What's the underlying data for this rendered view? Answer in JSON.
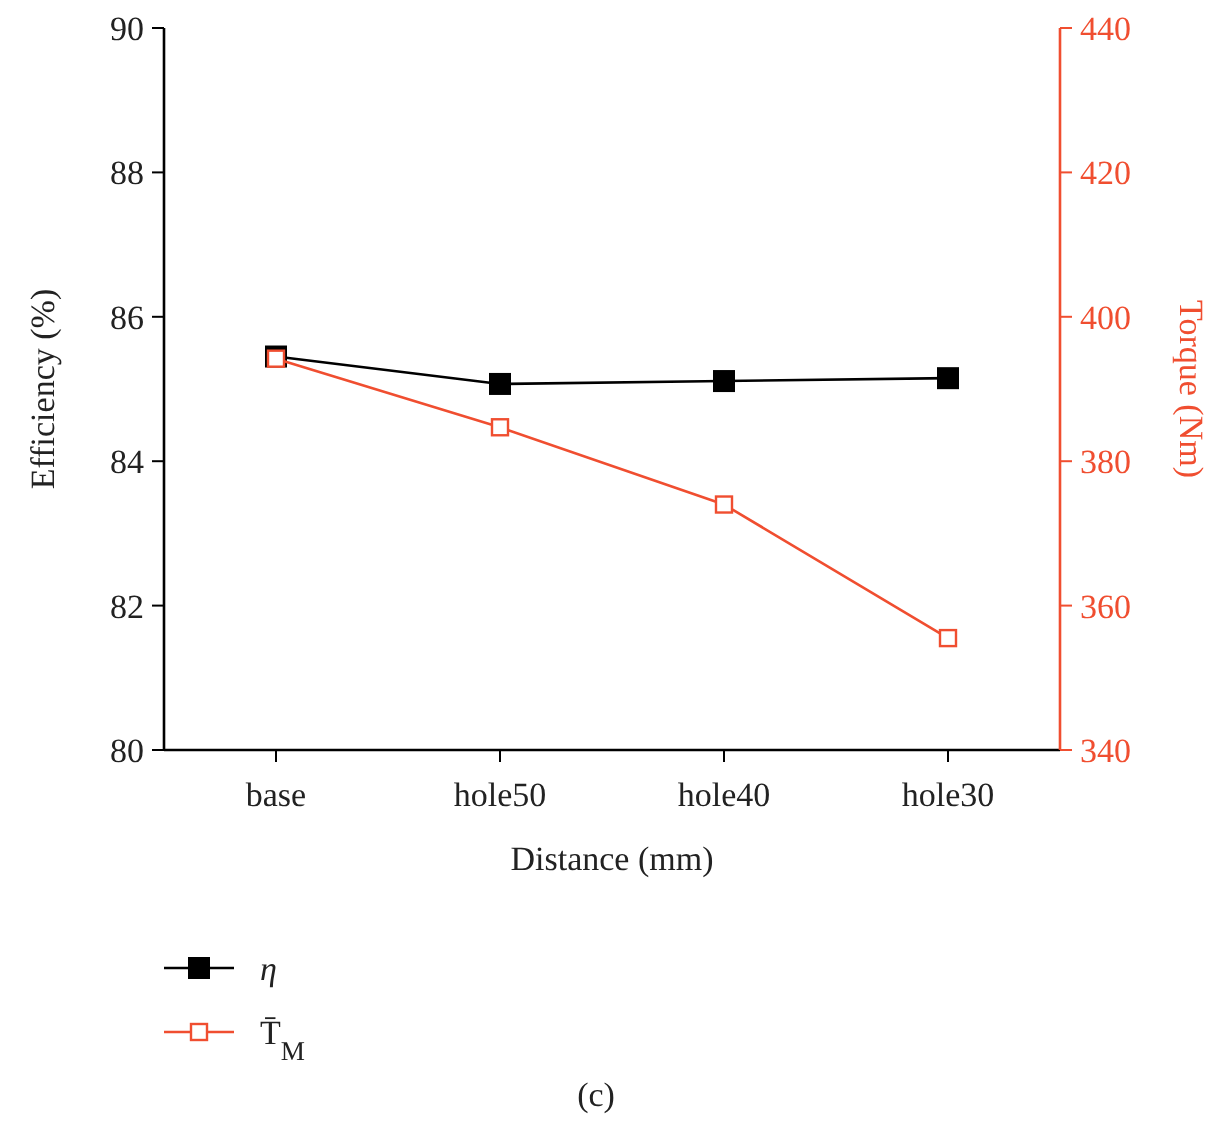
{
  "chart_data": {
    "type": "line",
    "xlabel": "Distance (mm)",
    "ylabel": "Efficiency (%)",
    "y2label": "Torque (Nm)",
    "categories": [
      "base",
      "hole50",
      "hole40",
      "hole30"
    ],
    "series": [
      {
        "name": "η",
        "color": "#000000",
        "values": [
          85.45,
          85.07,
          85.11,
          85.15
        ],
        "marker": "square"
      },
      {
        "name": "T̄$_{M}$",
        "color": "#f04e30",
        "values": [
          394.2,
          384.7,
          374.0,
          355.5
        ],
        "axis": "y2",
        "marker": "square_open"
      }
    ],
    "ylim": [
      80,
      90
    ],
    "yticks": [
      80,
      82,
      84,
      86,
      88,
      90
    ],
    "y2lim": [
      340,
      440
    ],
    "y2ticks": [
      340,
      360,
      380,
      400,
      420,
      440
    ],
    "grid": false,
    "legend": "bottom left",
    "annotations": [
      "(c)"
    ]
  }
}
